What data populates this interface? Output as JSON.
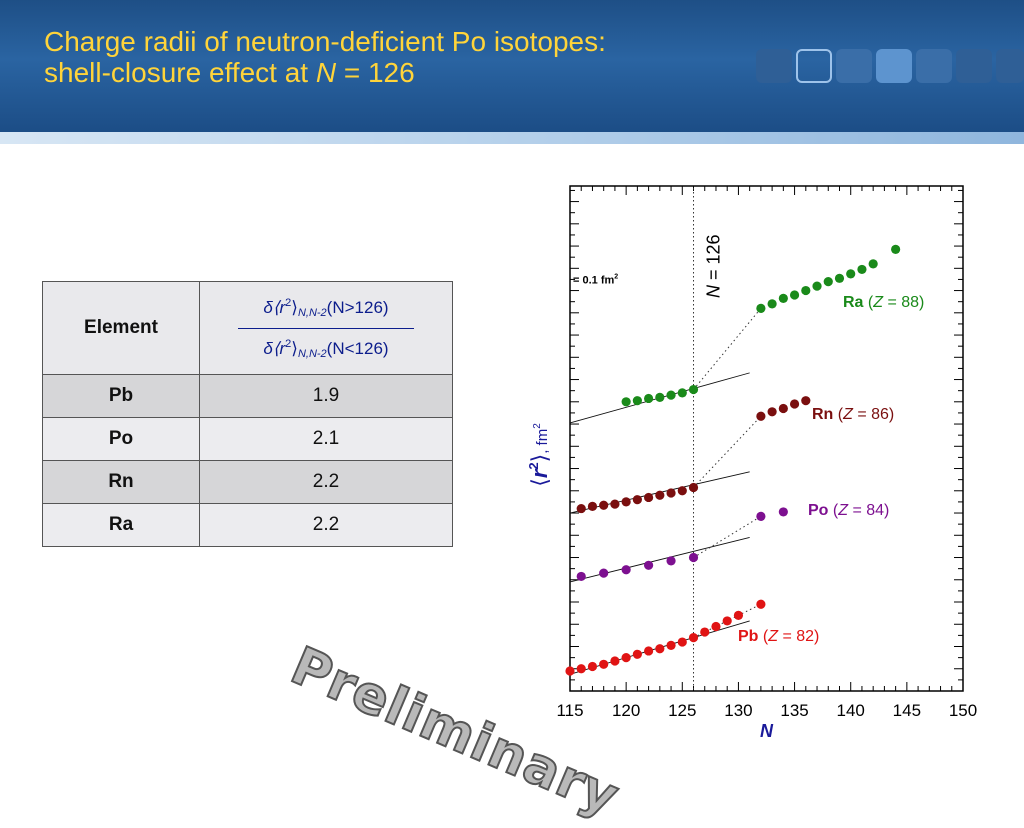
{
  "slide": {
    "title_line1": "Charge radii of neutron-deficient Po isotopes:",
    "title_line2_prefix": "shell-closure effect at ",
    "title_line2_italic": "N",
    "title_line2_suffix": " = 126",
    "watermark": "Preliminary"
  },
  "table": {
    "header_element": "Element",
    "formula_top": "(N>126)",
    "formula_bottom": "(N<126)",
    "formula_delta": "δ⟨r",
    "formula_sup": "2",
    "formula_close": "⟩",
    "formula_sub": "N,N-2",
    "rows": [
      {
        "element": "Pb",
        "value": "1.9"
      },
      {
        "element": "Po",
        "value": "2.1"
      },
      {
        "element": "Rn",
        "value": "2.2"
      },
      {
        "element": "Ra",
        "value": "2.2"
      }
    ]
  },
  "chart_data": {
    "type": "scatter",
    "xlabel": "N",
    "ylabel": "⟨r2⟩, fm2",
    "xlim": [
      115,
      150
    ],
    "xticks": [
      "115",
      "120",
      "125",
      "130",
      "135",
      "140",
      "145",
      "150"
    ],
    "yaxis_units": "arbitrary offset per element",
    "scale_label": "= 0.1 fm2",
    "scale_value": 0.1,
    "ylim": [
      0,
      2.27
    ],
    "reference_line": {
      "x": 126,
      "label": "N  = 126"
    },
    "colors": {
      "Ra": "#1a8a1a",
      "Rn": "#7a0f0f",
      "Po": "#7d1090",
      "Pb": "#e01414"
    },
    "series": [
      {
        "name": "Ra",
        "label": "Ra (Z = 88)",
        "x": [
          120,
          121,
          122,
          123,
          124,
          125,
          126,
          132,
          133,
          134,
          135,
          136,
          137,
          138,
          139,
          140,
          141,
          142,
          144
        ],
        "y": [
          1.3,
          1.305,
          1.315,
          1.32,
          1.33,
          1.34,
          1.355,
          1.72,
          1.74,
          1.765,
          1.78,
          1.8,
          1.82,
          1.84,
          1.855,
          1.875,
          1.895,
          1.92,
          1.985
        ]
      },
      {
        "name": "Rn",
        "label": "Rn (Z = 86)",
        "x": [
          116,
          117,
          118,
          119,
          120,
          121,
          122,
          123,
          124,
          125,
          126,
          132,
          133,
          134,
          135,
          136
        ],
        "y": [
          0.82,
          0.83,
          0.835,
          0.84,
          0.85,
          0.86,
          0.87,
          0.88,
          0.89,
          0.9,
          0.915,
          1.235,
          1.255,
          1.27,
          1.29,
          1.305
        ]
      },
      {
        "name": "Po",
        "label": "Po (Z = 84)",
        "x": [
          116,
          118,
          120,
          122,
          124,
          126,
          132,
          134
        ],
        "y": [
          0.515,
          0.53,
          0.545,
          0.565,
          0.585,
          0.6,
          0.785,
          0.805
        ]
      },
      {
        "name": "Pb",
        "label": "Pb (Z = 82)",
        "x": [
          115,
          116,
          117,
          118,
          119,
          120,
          121,
          122,
          123,
          124,
          125,
          126,
          127,
          128,
          129,
          130,
          132
        ],
        "y": [
          0.09,
          0.1,
          0.11,
          0.12,
          0.135,
          0.15,
          0.165,
          0.18,
          0.19,
          0.205,
          0.22,
          0.24,
          0.265,
          0.29,
          0.315,
          0.34,
          0.39
        ]
      }
    ],
    "fit_lines": [
      {
        "name": "Ra",
        "x": [
          115,
          131
        ],
        "y": [
          1.205,
          1.43
        ]
      },
      {
        "name": "Rn",
        "x": [
          115,
          131
        ],
        "y": [
          0.8,
          0.985
        ]
      },
      {
        "name": "Po",
        "x": [
          115,
          131
        ],
        "y": [
          0.49,
          0.69
        ]
      },
      {
        "name": "Pb",
        "x": [
          115,
          131
        ],
        "y": [
          0.075,
          0.315
        ]
      }
    ],
    "dotted_connectors": [
      {
        "name": "Ra",
        "x": [
          126,
          132
        ],
        "y": [
          1.355,
          1.72
        ]
      },
      {
        "name": "Rn",
        "x": [
          126,
          132
        ],
        "y": [
          0.915,
          1.235
        ]
      },
      {
        "name": "Po",
        "x": [
          126,
          132
        ],
        "y": [
          0.6,
          0.785
        ]
      },
      {
        "name": "Pb",
        "x": [
          126,
          132
        ],
        "y": [
          0.24,
          0.39
        ]
      }
    ]
  }
}
